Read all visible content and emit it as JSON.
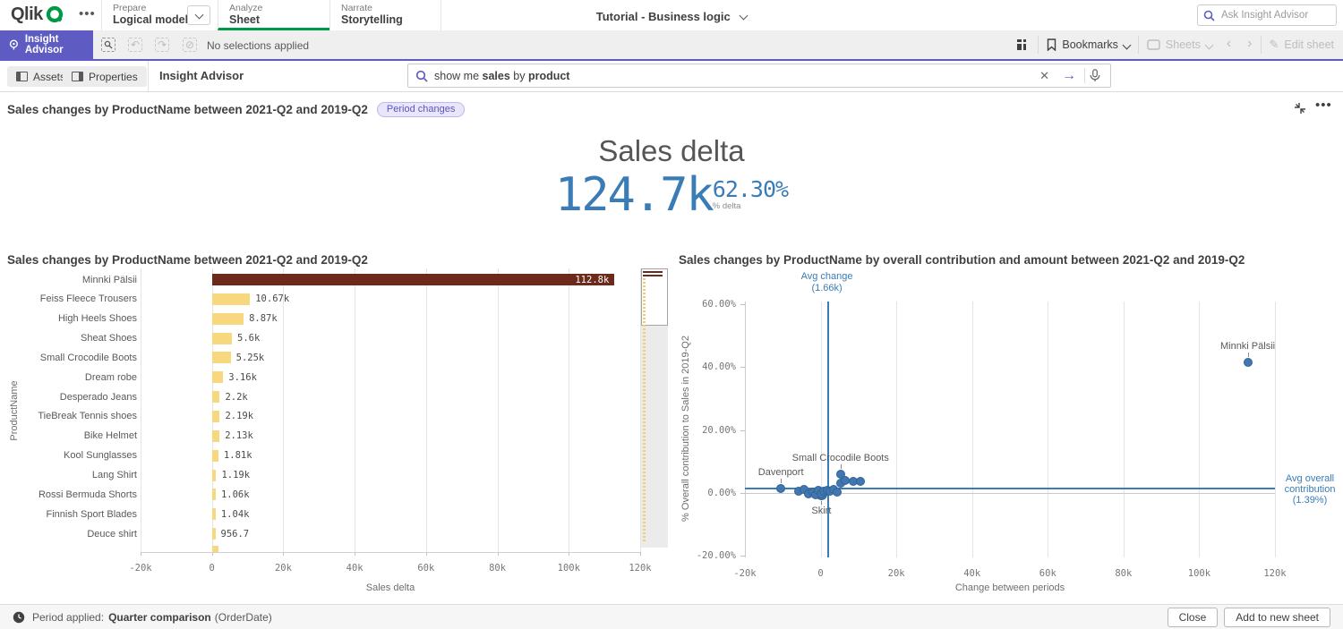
{
  "header": {
    "logo_text": "Qlik",
    "nav_tabs": [
      {
        "section": "Prepare",
        "label": "Logical model"
      },
      {
        "section": "Analyze",
        "label": "Sheet"
      },
      {
        "section": "Narrate",
        "label": "Storytelling"
      }
    ],
    "app_title": "Tutorial - Business logic",
    "global_search_placeholder": "Ask Insight Advisor"
  },
  "toolbar": {
    "insight_advisor_label": "Insight Advisor",
    "selections_status": "No selections applied",
    "bookmarks_label": "Bookmarks",
    "sheets_label": "Sheets",
    "edit_sheet_label": "Edit sheet"
  },
  "subheader": {
    "assets_label": "Assets",
    "properties_label": "Properties",
    "panel_title": "Insight Advisor",
    "query_parts": [
      {
        "text": "show me ",
        "bold": false
      },
      {
        "text": "sales",
        "bold": true
      },
      {
        "text": " by ",
        "bold": false
      },
      {
        "text": "product",
        "bold": true
      }
    ]
  },
  "insight": {
    "title": "Sales changes by ProductName between 2021-Q2 and 2019-Q2",
    "badge": "Period changes",
    "kpi": {
      "title": "Sales delta",
      "value": "124.7k",
      "delta_pct": "62.30%",
      "delta_label": "% delta"
    }
  },
  "chart_data": [
    {
      "type": "bar",
      "orientation": "horizontal",
      "title": "Sales changes by ProductName between 2021-Q2 and 2019-Q2",
      "xlabel": "Sales delta",
      "ylabel": "ProductName",
      "xticks": [
        "-20k",
        "0",
        "20k",
        "40k",
        "60k",
        "80k",
        "100k",
        "120k"
      ],
      "xtick_values": [
        -20000,
        0,
        20000,
        40000,
        60000,
        80000,
        100000,
        120000
      ],
      "xlim": [
        -20000,
        120000
      ],
      "grid": "vertical",
      "has_scrollbar": true,
      "categories": [
        "Minnki Pälsii",
        "Feiss Fleece Trousers",
        "High Heels Shoes",
        "Sheat Shoes",
        "Small Crocodile Boots",
        "Dream robe",
        "Desperado Jeans",
        "TieBreak Tennis shoes",
        "Bike Helmet",
        "Kool Sunglasses",
        "Lang Shirt",
        "Rossi Bermuda Shorts",
        "Finnish Sport Blades",
        "Deuce shirt"
      ],
      "values": [
        112800,
        10670,
        8870,
        5600,
        5250,
        3160,
        2200,
        2190,
        2130,
        1810,
        1190,
        1060,
        1040,
        956.7
      ],
      "value_labels": [
        "112.8k",
        "10.67k",
        "8.87k",
        "5.6k",
        "5.25k",
        "3.16k",
        "2.2k",
        "2.19k",
        "2.13k",
        "1.81k",
        "1.19k",
        "1.06k",
        "1.04k",
        "956.7"
      ],
      "highlight_index": 0
    },
    {
      "type": "scatter",
      "title": "Sales changes by ProductName by overall contribution and amount between 2021-Q2 and 2019-Q2",
      "xlabel": "Change between periods",
      "ylabel": "% Overall contribution to Sales in 2019-Q2",
      "xticks": [
        "-20k",
        "0",
        "20k",
        "40k",
        "60k",
        "80k",
        "100k",
        "120k"
      ],
      "xtick_values": [
        -20000,
        0,
        20000,
        40000,
        60000,
        80000,
        100000,
        120000
      ],
      "yticks": [
        "60.00%",
        "40.00%",
        "20.00%",
        "0.00%",
        "-20.00%"
      ],
      "ytick_values": [
        60,
        40,
        20,
        0,
        -20
      ],
      "xlim": [
        -20000,
        120000
      ],
      "ylim": [
        -20,
        60
      ],
      "grid": "vertical",
      "ref_lines": [
        {
          "axis": "x",
          "value": 1660,
          "label_lines": [
            "Avg change",
            "(1.66k)"
          ]
        },
        {
          "axis": "y",
          "value": 1.39,
          "label_lines": [
            "Avg overall",
            "contribution",
            "(1.39%)"
          ]
        }
      ],
      "points": [
        {
          "label": "Minnki Pälsii",
          "x": 112800,
          "y": 41.5,
          "label_pos": "above"
        },
        {
          "label": "Small Crocodile Boots",
          "x": 5250,
          "y": 5.9,
          "label_pos": "above"
        },
        {
          "label": "Davenport",
          "x": -10500,
          "y": 1.3,
          "label_pos": "above"
        },
        {
          "label": "Skirt",
          "x": 200,
          "y": -0.5,
          "label_pos": "below",
          "r": 6.5
        },
        {
          "x": -5800,
          "y": 0.6
        },
        {
          "x": -4400,
          "y": 1.1
        },
        {
          "x": -3200,
          "y": -0.3
        },
        {
          "x": -2000,
          "y": 0.3
        },
        {
          "x": -1300,
          "y": -0.6
        },
        {
          "x": -600,
          "y": 0.9
        },
        {
          "x": 100,
          "y": -0.3
        },
        {
          "x": 800,
          "y": 0.6
        },
        {
          "x": 1700,
          "y": 0.9
        },
        {
          "x": 2500,
          "y": 0.6
        },
        {
          "x": 3400,
          "y": 1.1
        },
        {
          "x": 4300,
          "y": 0.3
        },
        {
          "x": 5300,
          "y": 3.1
        },
        {
          "x": 6500,
          "y": 4.0
        },
        {
          "x": 8700,
          "y": 3.7
        },
        {
          "x": 10600,
          "y": 3.7
        }
      ]
    }
  ],
  "footer": {
    "period_prefix": "Period applied:",
    "period_name": "Quarter comparison",
    "period_field": "(OrderDate)",
    "close_label": "Close",
    "add_label": "Add to new sheet"
  },
  "colors": {
    "accent_purple": "#5e5cc2",
    "qlik_green": "#009845",
    "kpi_blue": "#3a7cb5",
    "bar_yellow": "#f8d87e",
    "bar_brown": "#6b2a1b",
    "dot_blue": "#4077b0",
    "ref_blue": "#3a7cb5",
    "gridline": "#e4e4e4"
  }
}
